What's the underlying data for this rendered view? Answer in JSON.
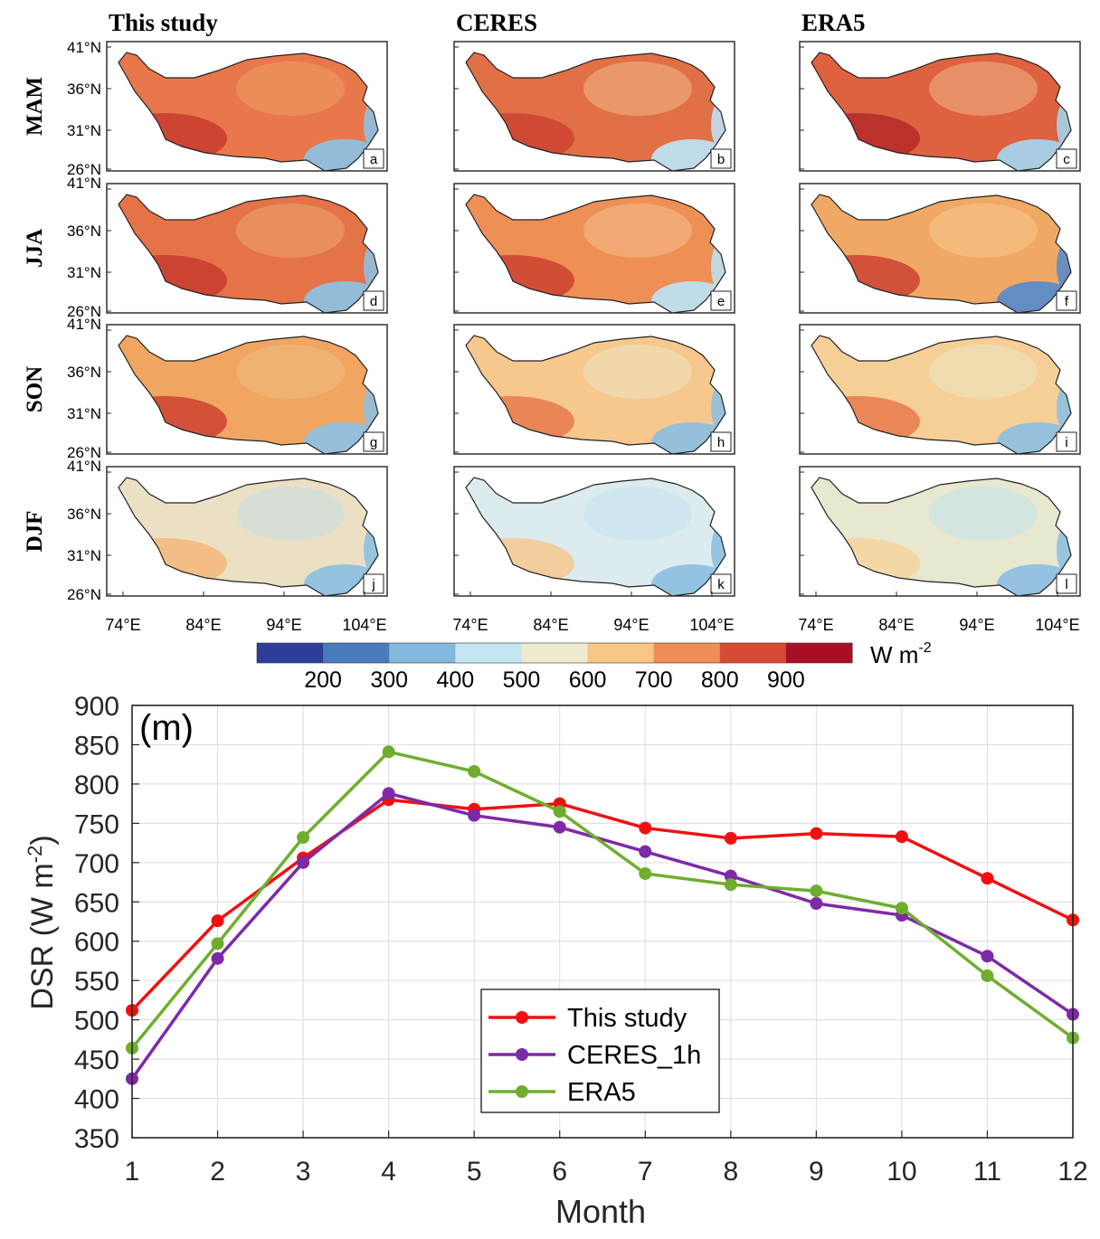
{
  "maps": {
    "column_titles": [
      "This study",
      "CERES",
      "ERA5"
    ],
    "row_labels": [
      "MAM",
      "JJA",
      "SON",
      "DJF"
    ],
    "panel_letters": [
      "a",
      "b",
      "c",
      "d",
      "e",
      "f",
      "g",
      "h",
      "i",
      "j",
      "k",
      "l"
    ],
    "lat_ticks": [
      "41°N",
      "36°N",
      "31°N",
      "26°N"
    ],
    "lon_ticks": [
      "74°E",
      "84°E",
      "94°E",
      "104°E"
    ],
    "panel_colors": [
      [
        "#e8784c",
        "#e27047",
        "#de6140"
      ],
      [
        "#e57348",
        "#ee9055",
        "#f0a965"
      ],
      [
        "#f0a661",
        "#f6c88e",
        "#f6cf97"
      ],
      [
        "#ece0c4",
        "#dcebee",
        "#e8e7cf"
      ]
    ],
    "panel_bands": [
      [
        [
          "#c93b2f",
          "#eea66a",
          "#8fc0e0"
        ],
        [
          "#cd4231",
          "#f6c89a",
          "#bde0f0"
        ],
        [
          "#b52a2a",
          "#f6c89a",
          "#a5d2ea"
        ]
      ],
      [
        [
          "#c93b2f",
          "#eeb27a",
          "#8fc0e0"
        ],
        [
          "#cd4231",
          "#f6c89a",
          "#bde0f0"
        ],
        [
          "#cd4231",
          "#f6cf97",
          "#5b8bc9"
        ]
      ],
      [
        [
          "#cd4231",
          "#f0c08a",
          "#8fc0e0"
        ],
        [
          "#e87a4b",
          "#ecebcf",
          "#8fc0e0"
        ],
        [
          "#e87a4b",
          "#ecebcf",
          "#8fc0e0"
        ]
      ],
      [
        [
          "#f3b77a",
          "#bcdcee",
          "#8fc0e0"
        ],
        [
          "#f6c88e",
          "#bde0f0",
          "#8fc0e0"
        ],
        [
          "#f6d49f",
          "#bde0f0",
          "#8fc0e0"
        ]
      ]
    ]
  },
  "colorbar": {
    "colors": [
      "#2c3e99",
      "#4a7bbd",
      "#84b8dc",
      "#c4e6f3",
      "#efebcf",
      "#f7c687",
      "#ee8d58",
      "#d94a35",
      "#a80f26"
    ],
    "tick_labels": [
      "200",
      "300",
      "400",
      "500",
      "600",
      "700",
      "800",
      "900"
    ],
    "unit": "W m",
    "unit_sup": "-2"
  },
  "chart_data": {
    "type": "line",
    "panel_label": "(m)",
    "xlabel": "Month",
    "ylabel": "DSR (W m",
    "ylabel_sup": "-2",
    "ylabel_end": ")",
    "x": [
      1,
      2,
      3,
      4,
      5,
      6,
      7,
      8,
      9,
      10,
      11,
      12
    ],
    "xlim": [
      1,
      12
    ],
    "ylim": [
      350,
      900
    ],
    "yticks": [
      350,
      400,
      450,
      500,
      550,
      600,
      650,
      700,
      750,
      800,
      850,
      900
    ],
    "grid": true,
    "legend_position": "bottom-center",
    "series": [
      {
        "name": "This study",
        "color": "#f01010",
        "values": [
          512,
          626,
          706,
          780,
          768,
          775,
          744,
          731,
          737,
          733,
          680,
          627
        ]
      },
      {
        "name": "CERES_1h",
        "color": "#7d2aa8",
        "values": [
          425,
          578,
          700,
          788,
          760,
          745,
          714,
          683,
          648,
          633,
          581,
          507
        ]
      },
      {
        "name": "ERA5",
        "color": "#6fad2e",
        "values": [
          464,
          597,
          732,
          841,
          816,
          765,
          686,
          672,
          664,
          642,
          556,
          477
        ]
      }
    ]
  }
}
